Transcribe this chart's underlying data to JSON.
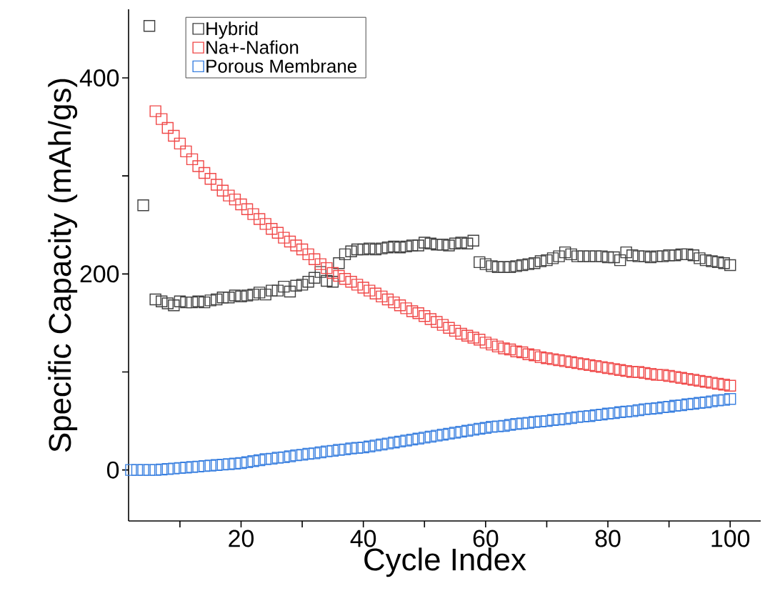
{
  "chart_data": {
    "type": "scatter",
    "xlabel": "Cycle Index",
    "ylabel": "Specific Capacity (mAh/gs)",
    "xlim": [
      1.6,
      105
    ],
    "ylim": [
      -52,
      470
    ],
    "xticks": [
      {
        "value": 10,
        "label": null
      },
      20,
      {
        "value": 30,
        "label": null
      },
      40,
      {
        "value": 50,
        "label": null
      },
      60,
      {
        "value": 70,
        "label": null
      },
      80,
      {
        "value": 90,
        "label": null
      },
      100
    ],
    "yticks": [
      0,
      {
        "value": 100,
        "label": null
      },
      200,
      {
        "value": 300,
        "label": null
      },
      400
    ],
    "grid": false,
    "legend": "top",
    "marker": "square",
    "series": [
      {
        "name": "Hybrid",
        "color": "#404040",
        "x": [
          4,
          5,
          6,
          7,
          8,
          9,
          10,
          11,
          12,
          13,
          14,
          15,
          16,
          17,
          18,
          19,
          20,
          21,
          22,
          23,
          24,
          25,
          26,
          27,
          28,
          29,
          30,
          31,
          32,
          33,
          34,
          35,
          36,
          37,
          38,
          39,
          40,
          41,
          42,
          43,
          44,
          45,
          46,
          47,
          48,
          49,
          50,
          51,
          52,
          53,
          54,
          55,
          56,
          57,
          58,
          59,
          60,
          61,
          62,
          63,
          64,
          65,
          66,
          67,
          68,
          69,
          70,
          71,
          72,
          73,
          74,
          75,
          76,
          77,
          78,
          79,
          80,
          81,
          82,
          83,
          84,
          85,
          86,
          87,
          88,
          89,
          90,
          91,
          92,
          93,
          94,
          95,
          96,
          97,
          98,
          99,
          100
        ],
        "values": [
          270,
          453,
          174,
          172,
          170,
          168,
          172,
          171,
          171,
          172,
          171,
          173,
          174,
          176,
          176,
          178,
          177,
          178,
          179,
          181,
          179,
          183,
          183,
          187,
          182,
          188,
          189,
          192,
          196,
          202,
          193,
          192,
          211,
          220,
          223,
          225,
          225,
          226,
          225,
          226,
          227,
          228,
          227,
          228,
          229,
          229,
          232,
          231,
          230,
          230,
          229,
          231,
          232,
          231,
          234,
          212,
          210,
          208,
          207,
          207,
          207,
          208,
          209,
          210,
          211,
          213,
          214,
          216,
          218,
          222,
          220,
          218,
          218,
          218,
          218,
          218,
          217,
          217,
          214,
          222,
          219,
          218,
          218,
          217,
          218,
          218,
          219,
          219,
          220,
          220,
          219,
          216,
          214,
          213,
          212,
          211,
          209
        ]
      },
      {
        "name": "Na+-Nafion",
        "color": "#f04848",
        "x": [
          6,
          7,
          8,
          9,
          10,
          11,
          12,
          13,
          14,
          15,
          16,
          17,
          18,
          19,
          20,
          21,
          22,
          23,
          24,
          25,
          26,
          27,
          28,
          29,
          30,
          31,
          32,
          33,
          34,
          35,
          36,
          37,
          38,
          39,
          40,
          41,
          42,
          43,
          44,
          45,
          46,
          47,
          48,
          49,
          50,
          51,
          52,
          53,
          54,
          55,
          56,
          57,
          58,
          59,
          60,
          61,
          62,
          63,
          64,
          65,
          66,
          67,
          68,
          69,
          70,
          71,
          72,
          73,
          74,
          75,
          76,
          77,
          78,
          79,
          80,
          81,
          82,
          83,
          84,
          85,
          86,
          87,
          88,
          89,
          90,
          91,
          92,
          93,
          94,
          95,
          96,
          97,
          98,
          99,
          100
        ],
        "values": [
          366,
          358,
          349,
          341,
          333,
          325,
          317,
          310,
          303,
          297,
          291,
          285,
          280,
          276,
          271,
          266,
          261,
          256,
          251,
          246,
          242,
          237,
          233,
          229,
          225,
          220,
          215,
          210,
          206,
          201,
          198,
          195,
          192,
          189,
          186,
          183,
          180,
          177,
          174,
          171,
          168,
          165,
          162,
          160,
          157,
          154,
          151,
          148,
          145,
          142,
          139,
          137,
          135,
          133,
          130,
          128,
          126,
          124,
          123,
          121,
          120,
          118,
          117,
          115,
          114,
          113,
          112,
          111,
          110,
          109,
          108,
          107,
          106,
          105,
          104,
          103,
          102,
          101,
          100,
          100,
          99,
          98,
          97,
          97,
          96,
          95,
          94,
          93,
          92,
          91,
          90,
          89,
          88,
          87,
          86
        ]
      },
      {
        "name": "Porous Membrane",
        "color": "#3a80e0",
        "x": [
          2,
          3,
          4,
          5,
          6,
          7,
          8,
          9,
          10,
          11,
          12,
          13,
          14,
          15,
          16,
          17,
          18,
          19,
          20,
          21,
          22,
          23,
          24,
          25,
          26,
          27,
          28,
          29,
          30,
          31,
          32,
          33,
          34,
          35,
          36,
          37,
          38,
          39,
          40,
          41,
          42,
          43,
          44,
          45,
          46,
          47,
          48,
          49,
          50,
          51,
          52,
          53,
          54,
          55,
          56,
          57,
          58,
          59,
          60,
          61,
          62,
          63,
          64,
          65,
          66,
          67,
          68,
          69,
          70,
          71,
          72,
          73,
          74,
          75,
          76,
          77,
          78,
          79,
          80,
          81,
          82,
          83,
          84,
          85,
          86,
          87,
          88,
          89,
          90,
          91,
          92,
          93,
          94,
          95,
          96,
          97,
          98,
          99,
          100
        ],
        "values": [
          0,
          0,
          0,
          0,
          0,
          0.5,
          1,
          1.5,
          2,
          2.5,
          3,
          3.5,
          4,
          4.5,
          5,
          5.5,
          6,
          6.5,
          7,
          8,
          9,
          10,
          11,
          11.5,
          12.5,
          13,
          14,
          15,
          15.5,
          16.5,
          17,
          18,
          19,
          19.5,
          20.5,
          21,
          22,
          22.5,
          23,
          24,
          25,
          26,
          27,
          28,
          29,
          30,
          31,
          32,
          33,
          34,
          35,
          36,
          37,
          38,
          39,
          40,
          41,
          42,
          43,
          44,
          44.5,
          45,
          46,
          47,
          47.5,
          48,
          49,
          49.5,
          50,
          51,
          51.5,
          52,
          53,
          54,
          54.5,
          55,
          56,
          56.5,
          57.5,
          58,
          59,
          59.5,
          60,
          61,
          62,
          62.5,
          63,
          64,
          64.5,
          65.5,
          66,
          67,
          67.5,
          68.5,
          69,
          70,
          71,
          71.5,
          72.5
        ]
      }
    ]
  }
}
